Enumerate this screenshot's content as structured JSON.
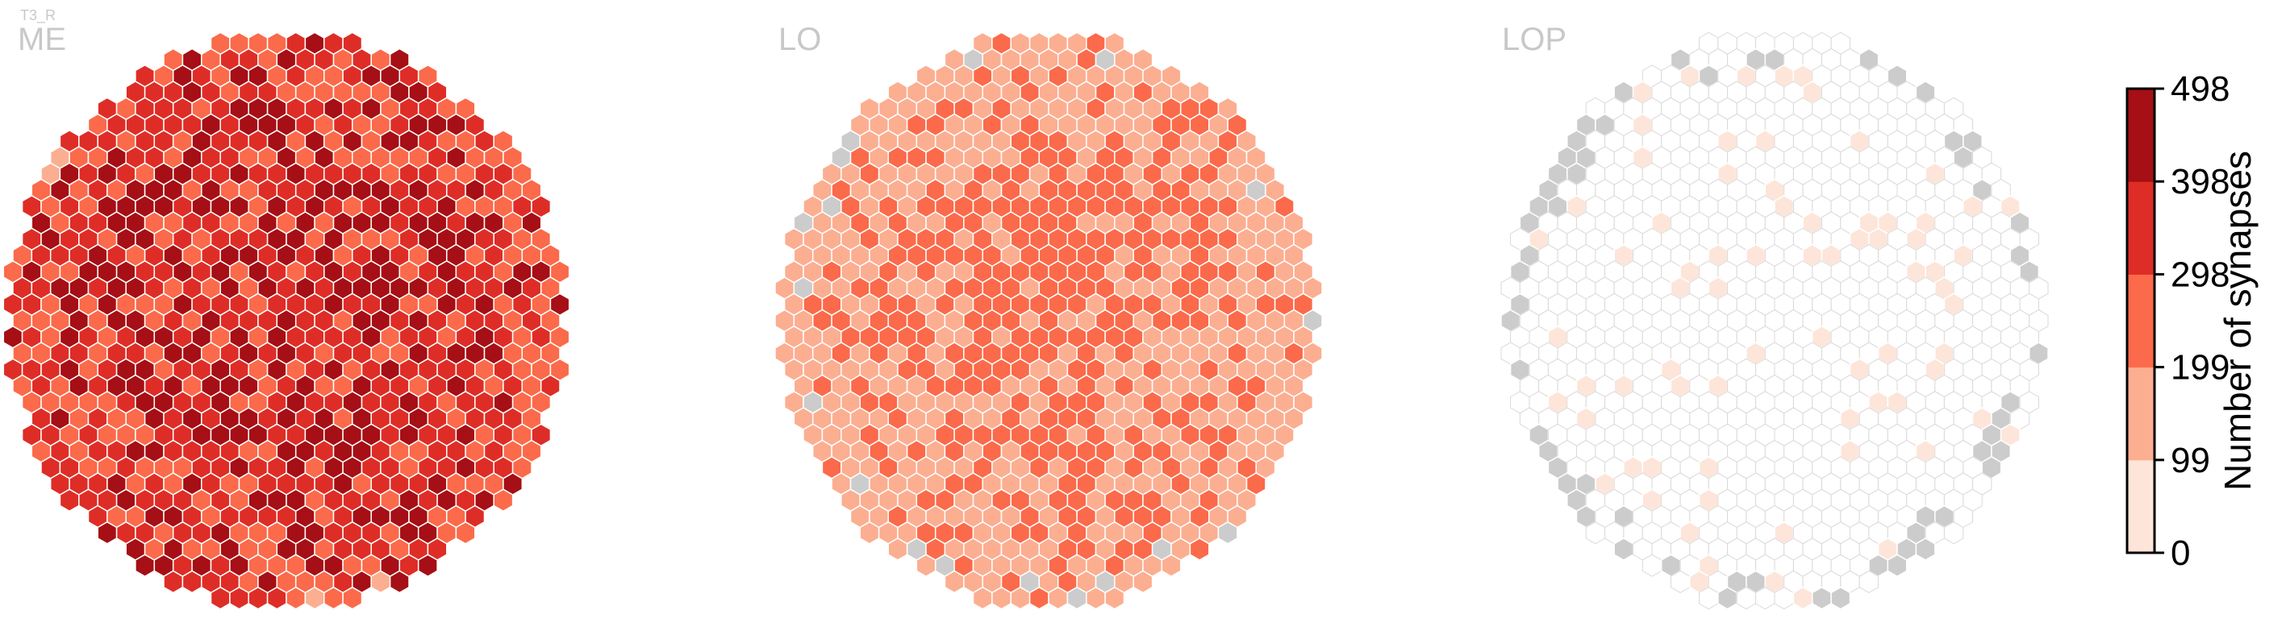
{
  "figure": {
    "cell_type_label": "T3_R"
  },
  "chart_data": {
    "type": "heatmap",
    "description_kind": "hexagonal column maps",
    "panels": [
      {
        "name": "ME",
        "mean_level": 3.0,
        "spread": 1.3,
        "missing_columns": 0,
        "empty_fraction": 0.0
      },
      {
        "name": "LO",
        "mean_level": 1.4,
        "spread": 0.55,
        "missing_columns": 18,
        "empty_fraction": 0.0
      },
      {
        "name": "LOP",
        "mean_level": 0.12,
        "spread": 0.25,
        "missing_columns": 60,
        "empty_fraction": 0.9
      }
    ],
    "colorbar": {
      "label": "Number of synapses",
      "ticks": [
        "0",
        "99",
        "199",
        "298",
        "398",
        "498"
      ],
      "min": 0,
      "max": 498,
      "bin_colors": [
        "#fee5d9",
        "#fcae91",
        "#fb6a4a",
        "#de2d26",
        "#a50f15"
      ],
      "missing_color": "#cccccc",
      "empty_outline_color": "#d9d9d9"
    }
  }
}
